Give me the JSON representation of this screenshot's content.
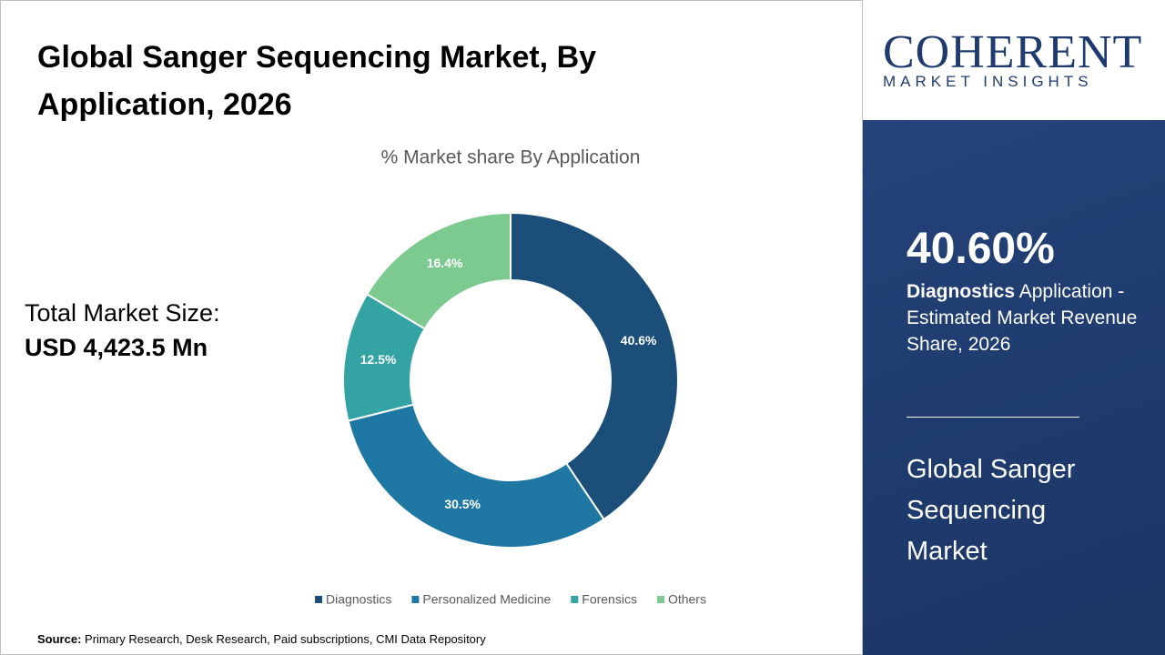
{
  "header": {
    "title": "Global Sanger Sequencing Market, By Application, 2026"
  },
  "market_size": {
    "label": "Total Market Size:",
    "value": "USD 4,423.5 Mn"
  },
  "logo": {
    "name": "COHERENT",
    "tagline": "MARKET INSIGHTS"
  },
  "highlight": {
    "stat": "40.60%",
    "segment": "Diagnostics",
    "description": "Application - Estimated Market Revenue Share, 2026"
  },
  "market_name": "Global Sanger Sequencing Market",
  "source": {
    "label": "Source:",
    "text": "Primary Research, Desk Research, Paid subscriptions, CMI Data Repository"
  },
  "chart_data": {
    "type": "pie",
    "donut": true,
    "title": "% Market share By Application",
    "categories": [
      "Diagnostics",
      "Personalized Medicine",
      "Forensics",
      "Others"
    ],
    "values": [
      40.6,
      30.5,
      12.5,
      16.4
    ],
    "value_labels": [
      "40.6%",
      "30.5%",
      "12.5%",
      "16.4%"
    ],
    "colors": [
      "#1b4f7a",
      "#1f77a4",
      "#33a3a3",
      "#7cca8f"
    ],
    "legend": "bottom"
  }
}
